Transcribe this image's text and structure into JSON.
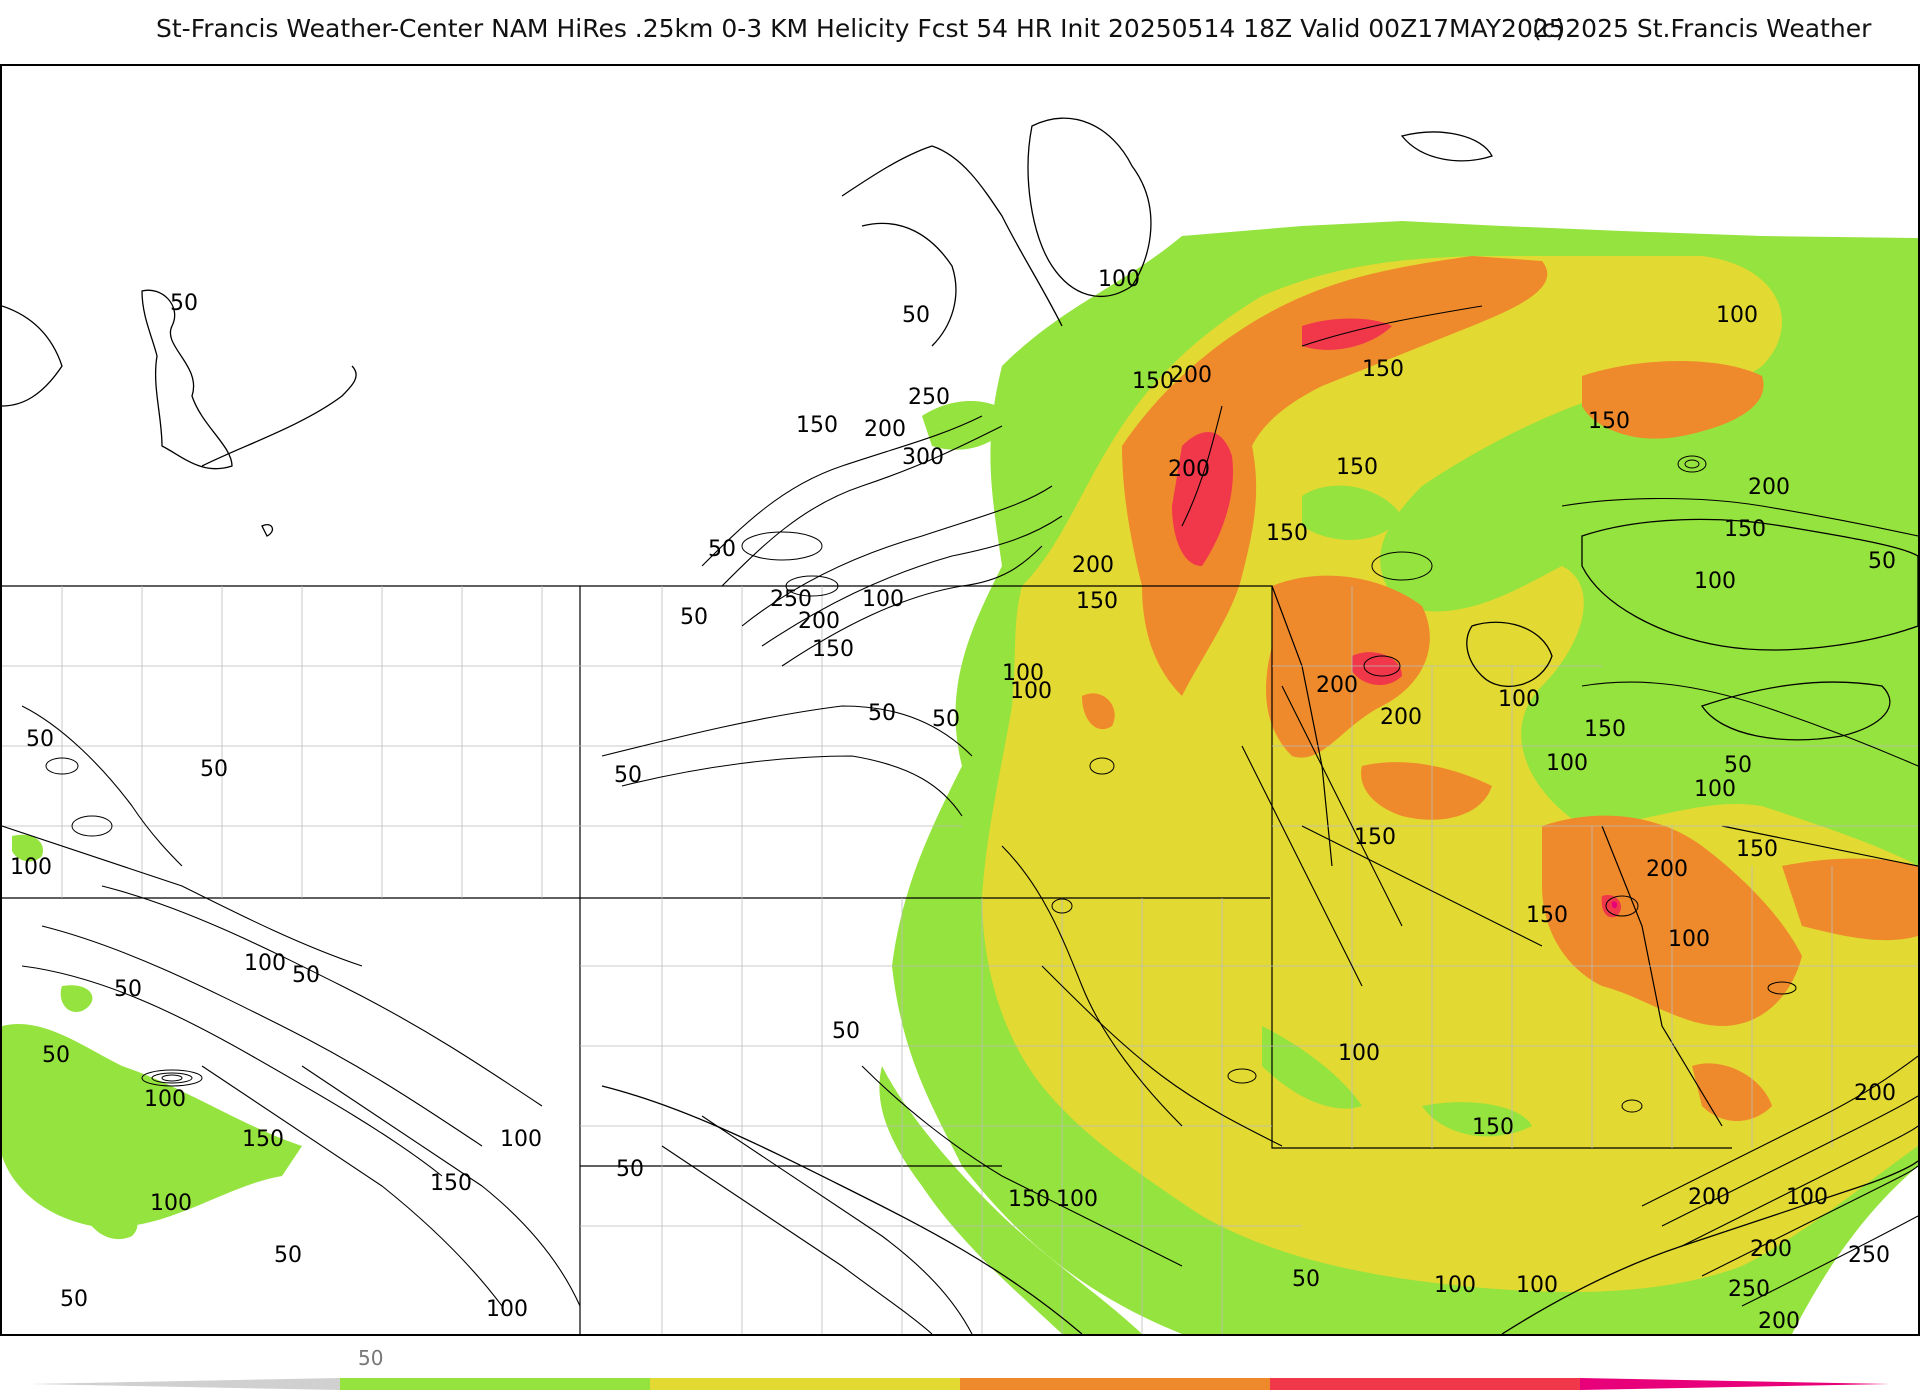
{
  "title": {
    "left": "St-Francis Weather-Center NAM HiRes .25km 0-3 KM Helicity Fcst 54 HR Init 20250514 18Z  Valid 00Z17MAY2025",
    "right": "(c)2025 St.Francis Weather"
  },
  "colorbar": {
    "tick_label": "50",
    "bins": [
      {
        "min": 0,
        "max": 50,
        "color": "#d0d0d0"
      },
      {
        "min": 50,
        "max": 100,
        "color": "#95e33e"
      },
      {
        "min": 100,
        "max": 150,
        "color": "#e3d933"
      },
      {
        "min": 150,
        "max": 200,
        "color": "#ef8a2c"
      },
      {
        "min": 200,
        "max": 250,
        "color": "#f0384a"
      },
      {
        "min": 250,
        "max": 300,
        "color": "#e8007a"
      }
    ]
  },
  "contour_labels": [
    "50",
    "100",
    "50",
    "250",
    "150",
    "200",
    "300",
    "50",
    "150",
    "200",
    "150",
    "100",
    "250",
    "200",
    "150",
    "100",
    "50",
    "100",
    "50",
    "50",
    "50",
    "50",
    "100",
    "50",
    "100",
    "50",
    "50",
    "150",
    "100",
    "50",
    "150",
    "100",
    "50",
    "50",
    "100",
    "50",
    "100",
    "200",
    "150",
    "200",
    "150",
    "200",
    "150",
    "100",
    "100",
    "150",
    "100",
    "200",
    "150",
    "50",
    "100",
    "150",
    "200",
    "50",
    "100",
    "150",
    "200",
    "150",
    "150",
    "100",
    "100",
    "150",
    "200",
    "100",
    "150",
    "100",
    "50",
    "100",
    "100",
    "250",
    "200",
    "250",
    "200",
    "200",
    "50"
  ]
}
